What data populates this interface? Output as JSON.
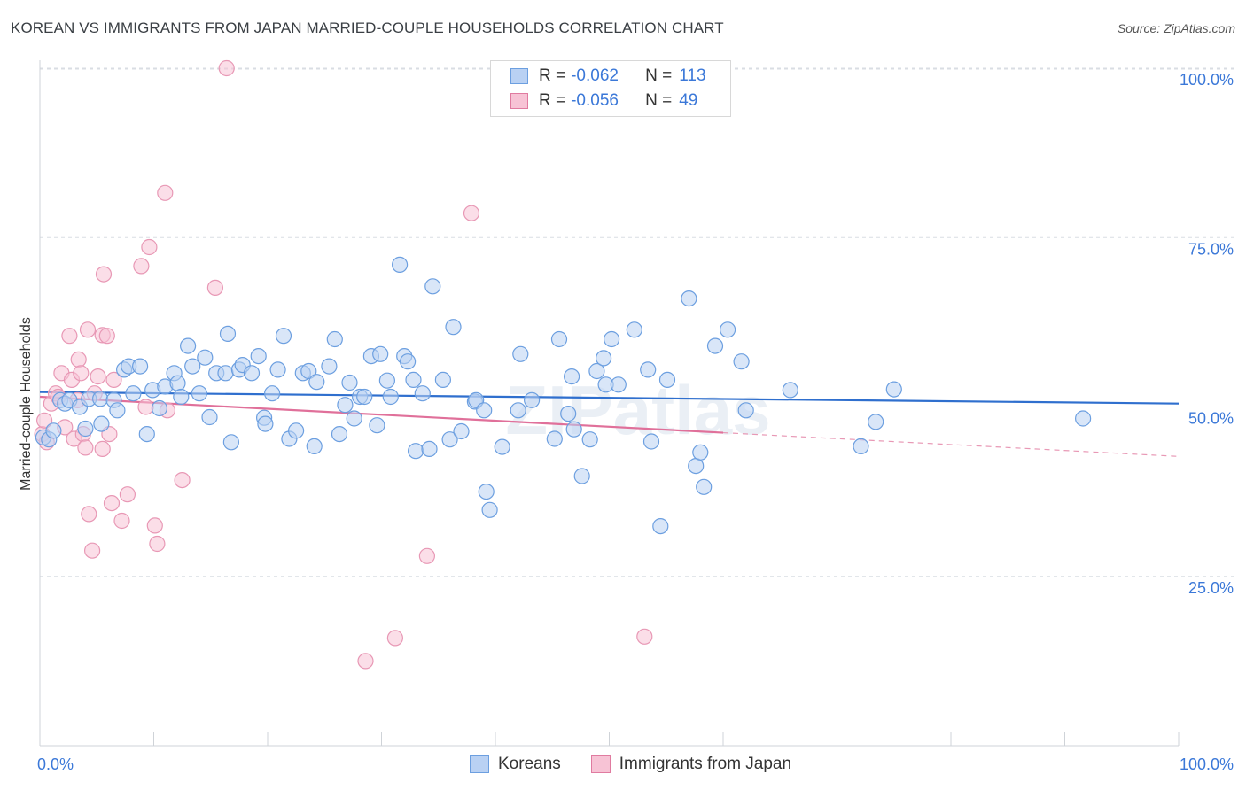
{
  "title": "KOREAN VS IMMIGRANTS FROM JAPAN MARRIED-COUPLE HOUSEHOLDS CORRELATION CHART",
  "source": "Source: ZipAtlas.com",
  "watermark": "ZIPatlas",
  "legend": {
    "r_label": "R =",
    "n_label": "N =",
    "entries": [
      {
        "name": "Koreans",
        "r": "-0.062",
        "n": "113",
        "color": "#6c9fe0",
        "fill": "#b9d1f3"
      },
      {
        "name": "Immigrants from Japan",
        "r": "-0.056",
        "n": "49",
        "color": "#e07ba0",
        "fill": "#f7c3d5"
      }
    ]
  },
  "chart_data": {
    "type": "scatter",
    "title": "KOREAN VS IMMIGRANTS FROM JAPAN MARRIED-COUPLE HOUSEHOLDS CORRELATION CHART",
    "xlabel": "",
    "ylabel": "Married-couple Households",
    "xlim": [
      0,
      100
    ],
    "ylim": [
      0,
      103
    ],
    "x_tick_labels": [
      "0.0%",
      "100.0%"
    ],
    "y_tick_labels": [
      "25.0%",
      "50.0%",
      "75.0%",
      "100.0%"
    ],
    "y_ticks": [
      25,
      50,
      75,
      100
    ],
    "grid": "horizontal dashed",
    "legend_placement": "top-center",
    "series": [
      {
        "name": "Koreans",
        "color": "#3b78d8",
        "trend": {
          "x": [
            0,
            100
          ],
          "y": [
            52.2,
            50.5
          ]
        },
        "points": [
          [
            0.3,
            45.5
          ],
          [
            0.8,
            45.2
          ],
          [
            1.2,
            46.5
          ],
          [
            1.8,
            51
          ],
          [
            2.2,
            50.5
          ],
          [
            2.6,
            51
          ],
          [
            3.5,
            50
          ],
          [
            4,
            46.8
          ],
          [
            4.3,
            51.2
          ],
          [
            5.3,
            51.2
          ],
          [
            5.4,
            47.5
          ],
          [
            6.5,
            51
          ],
          [
            6.8,
            49.5
          ],
          [
            7.4,
            55.5
          ],
          [
            7.8,
            56
          ],
          [
            8.2,
            52
          ],
          [
            8.8,
            56
          ],
          [
            9.4,
            46
          ],
          [
            9.9,
            52.5
          ],
          [
            10.5,
            49.8
          ],
          [
            11,
            53
          ],
          [
            11.8,
            55
          ],
          [
            12.1,
            53.5
          ],
          [
            12.4,
            51.5
          ],
          [
            13,
            59
          ],
          [
            13.4,
            56
          ],
          [
            14,
            52
          ],
          [
            14.5,
            57.3
          ],
          [
            14.9,
            48.5
          ],
          [
            15.5,
            55
          ],
          [
            16.3,
            55
          ],
          [
            16.5,
            60.8
          ],
          [
            16.8,
            44.8
          ],
          [
            17.5,
            55.5
          ],
          [
            17.8,
            56.2
          ],
          [
            18.6,
            55
          ],
          [
            19.2,
            57.5
          ],
          [
            19.7,
            48.4
          ],
          [
            19.8,
            47.5
          ],
          [
            20.4,
            52
          ],
          [
            20.9,
            55.5
          ],
          [
            21.4,
            60.5
          ],
          [
            21.9,
            45.3
          ],
          [
            22.5,
            46.5
          ],
          [
            23.1,
            55
          ],
          [
            23.6,
            55.3
          ],
          [
            24.1,
            44.2
          ],
          [
            24.3,
            53.7
          ],
          [
            25.4,
            56
          ],
          [
            25.9,
            60
          ],
          [
            26.3,
            46
          ],
          [
            26.8,
            50.3
          ],
          [
            27.2,
            53.6
          ],
          [
            27.6,
            48.3
          ],
          [
            28.1,
            51.5
          ],
          [
            28.5,
            51.5
          ],
          [
            29.1,
            57.5
          ],
          [
            29.6,
            47.3
          ],
          [
            29.9,
            57.8
          ],
          [
            30.5,
            53.9
          ],
          [
            30.8,
            51.5
          ],
          [
            31.6,
            71
          ],
          [
            32,
            57.5
          ],
          [
            32.3,
            56.7
          ],
          [
            32.8,
            54
          ],
          [
            33,
            43.5
          ],
          [
            33.6,
            52
          ],
          [
            34.2,
            43.8
          ],
          [
            34.5,
            67.8
          ],
          [
            35.4,
            54
          ],
          [
            36,
            45.2
          ],
          [
            36.3,
            61.8
          ],
          [
            37,
            46.4
          ],
          [
            38.2,
            50.8
          ],
          [
            38.3,
            51
          ],
          [
            39,
            49.5
          ],
          [
            39.2,
            37.5
          ],
          [
            39.5,
            34.8
          ],
          [
            40.6,
            44.1
          ],
          [
            42,
            49.5
          ],
          [
            42.2,
            57.8
          ],
          [
            43.2,
            51
          ],
          [
            45.2,
            45.3
          ],
          [
            45.6,
            60
          ],
          [
            46.4,
            49
          ],
          [
            46.7,
            54.5
          ],
          [
            46.9,
            46.7
          ],
          [
            47.6,
            39.8
          ],
          [
            48.3,
            45.2
          ],
          [
            48.9,
            55.3
          ],
          [
            49.5,
            57.2
          ],
          [
            49.7,
            53.3
          ],
          [
            50.2,
            60
          ],
          [
            50.8,
            53.3
          ],
          [
            52.2,
            61.4
          ],
          [
            53.4,
            55.5
          ],
          [
            53.7,
            44.9
          ],
          [
            54.5,
            32.4
          ],
          [
            55.1,
            54
          ],
          [
            57,
            66
          ],
          [
            57.6,
            41.3
          ],
          [
            58.0,
            43.3
          ],
          [
            58.3,
            38.2
          ],
          [
            59.3,
            59
          ],
          [
            60.4,
            61.4
          ],
          [
            61.6,
            56.7
          ],
          [
            62,
            49.5
          ],
          [
            65.9,
            52.5
          ],
          [
            75,
            52.6
          ],
          [
            72.1,
            44.2
          ],
          [
            73.4,
            47.8
          ],
          [
            91.6,
            48.3
          ]
        ]
      },
      {
        "name": "Immigrants from Japan",
        "color": "#e07ba0",
        "trend": {
          "x": [
            0,
            60
          ],
          "y": [
            51.5,
            46.2
          ]
        },
        "trend_dashed": {
          "x": [
            60,
            100
          ],
          "y": [
            46.2,
            42.7
          ]
        },
        "points": [
          [
            0.2,
            46
          ],
          [
            0.4,
            48
          ],
          [
            0.6,
            44.8
          ],
          [
            1,
            50.5
          ],
          [
            1.4,
            52
          ],
          [
            1.6,
            51.5
          ],
          [
            1.9,
            55
          ],
          [
            2.2,
            47
          ],
          [
            2.6,
            60.5
          ],
          [
            2.8,
            54
          ],
          [
            3.0,
            45.3
          ],
          [
            3.3,
            51
          ],
          [
            3.4,
            57
          ],
          [
            3.6,
            55
          ],
          [
            3.8,
            46
          ],
          [
            4,
            44
          ],
          [
            4.2,
            61.4
          ],
          [
            4.3,
            34.2
          ],
          [
            4.6,
            28.8
          ],
          [
            4.8,
            52
          ],
          [
            5.1,
            54.5
          ],
          [
            5.5,
            60.6
          ],
          [
            5.5,
            43.8
          ],
          [
            5.6,
            69.6
          ],
          [
            5.9,
            60.5
          ],
          [
            6.1,
            46
          ],
          [
            6.3,
            35.8
          ],
          [
            6.5,
            54
          ],
          [
            7.2,
            33.2
          ],
          [
            7.7,
            37.1
          ],
          [
            8.9,
            70.8
          ],
          [
            9.3,
            50
          ],
          [
            9.6,
            73.6
          ],
          [
            10.1,
            32.5
          ],
          [
            10.3,
            29.8
          ],
          [
            11,
            81.6
          ],
          [
            11.2,
            49.5
          ],
          [
            12.5,
            39.2
          ],
          [
            15.4,
            67.6
          ],
          [
            16.4,
            100
          ],
          [
            28.6,
            12.5
          ],
          [
            31.2,
            15.9
          ],
          [
            34,
            28
          ],
          [
            37.9,
            78.6
          ],
          [
            53.1,
            16.1
          ]
        ]
      }
    ]
  }
}
